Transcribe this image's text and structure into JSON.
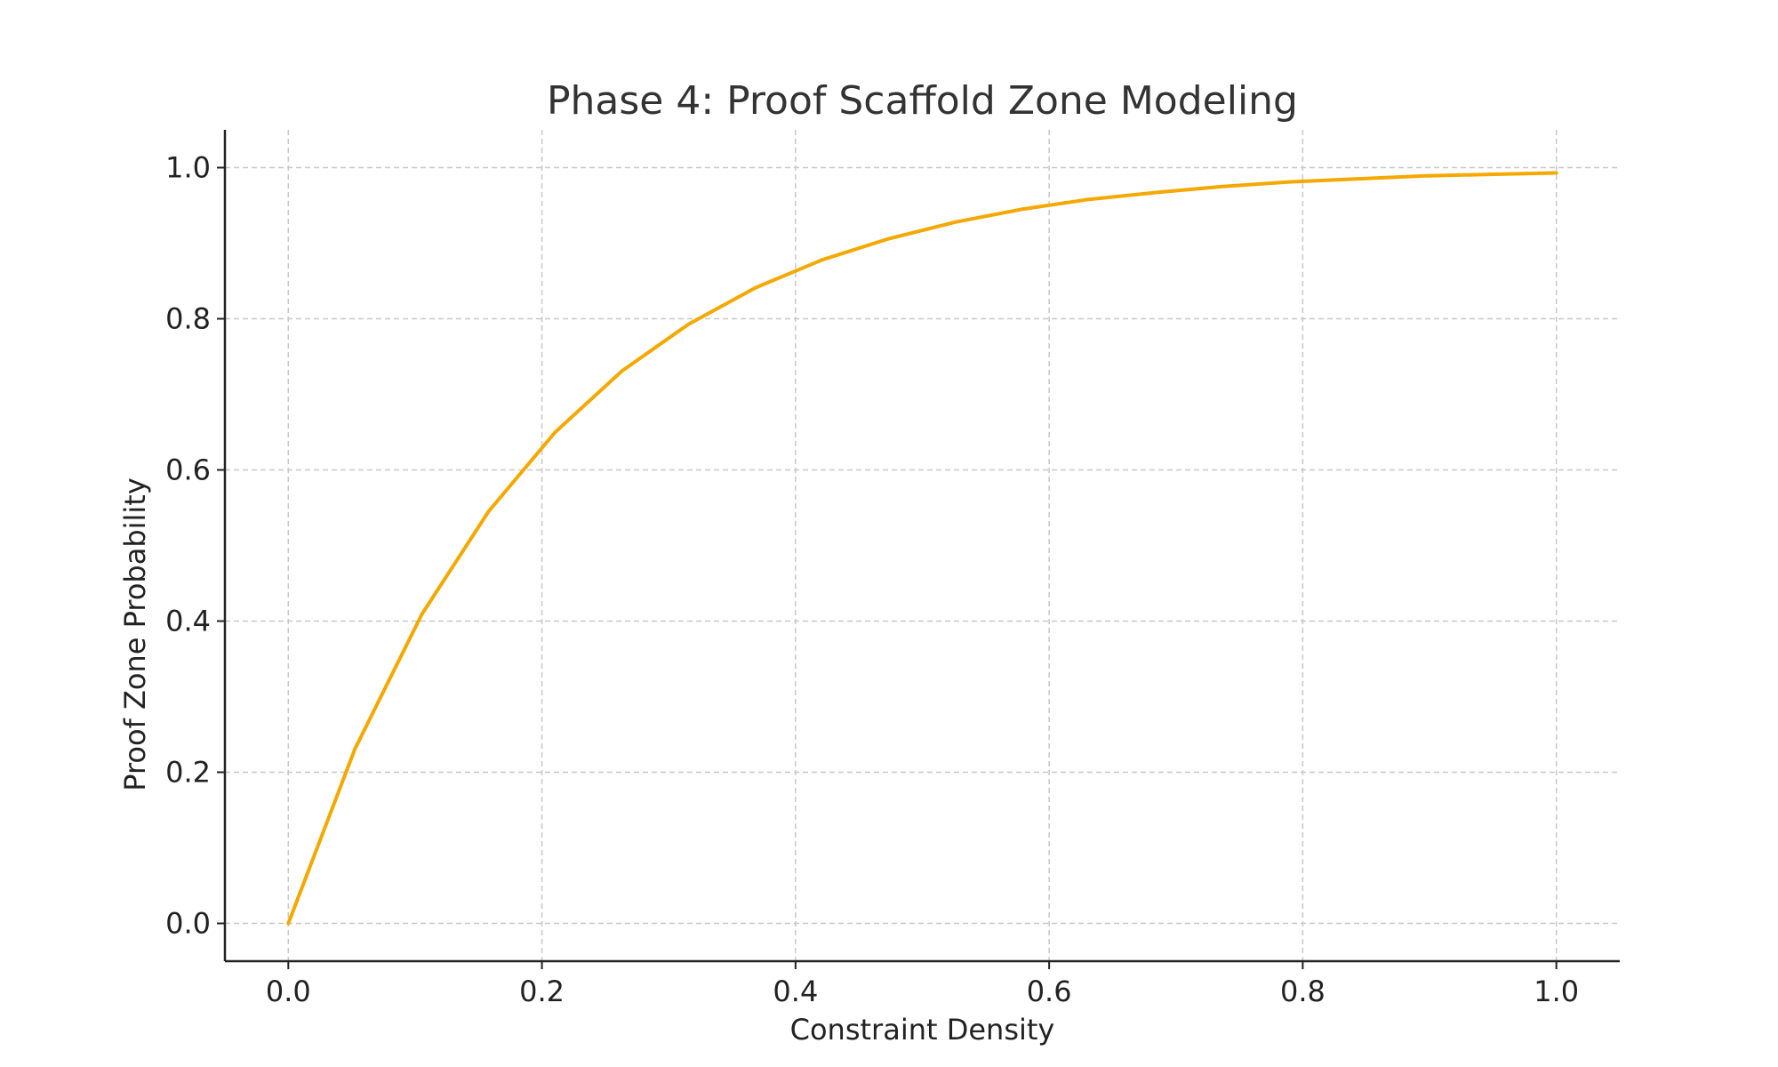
{
  "chart_data": {
    "type": "line",
    "title": "Phase 4: Proof Scaffold Zone Modeling",
    "xlabel": "Constraint Density",
    "ylabel": "Proof Zone Probability",
    "xlim": [
      -0.05,
      1.05
    ],
    "ylim": [
      -0.05,
      1.05
    ],
    "xticks": [
      0.0,
      0.2,
      0.4,
      0.6,
      0.8,
      1.0
    ],
    "xtick_labels": [
      "0.0",
      "0.2",
      "0.4",
      "0.6",
      "0.8",
      "1.0"
    ],
    "yticks": [
      0.0,
      0.2,
      0.4,
      0.6,
      0.8,
      1.0
    ],
    "ytick_labels": [
      "0.0",
      "0.2",
      "0.4",
      "0.6",
      "0.8",
      "1.0"
    ],
    "grid": true,
    "series": [
      {
        "color": "#f5a800",
        "x": [
          0.0,
          0.0526,
          0.1053,
          0.1579,
          0.2105,
          0.2632,
          0.3158,
          0.3684,
          0.4211,
          0.4737,
          0.5263,
          0.5789,
          0.6316,
          0.6842,
          0.7368,
          0.7895,
          0.8421,
          0.8947,
          0.9474,
          1.0
        ],
        "y": [
          0.0,
          0.231,
          0.409,
          0.545,
          0.65,
          0.731,
          0.793,
          0.841,
          0.878,
          0.906,
          0.928,
          0.945,
          0.958,
          0.967,
          0.975,
          0.981,
          0.985,
          0.989,
          0.991,
          0.993
        ]
      }
    ]
  }
}
